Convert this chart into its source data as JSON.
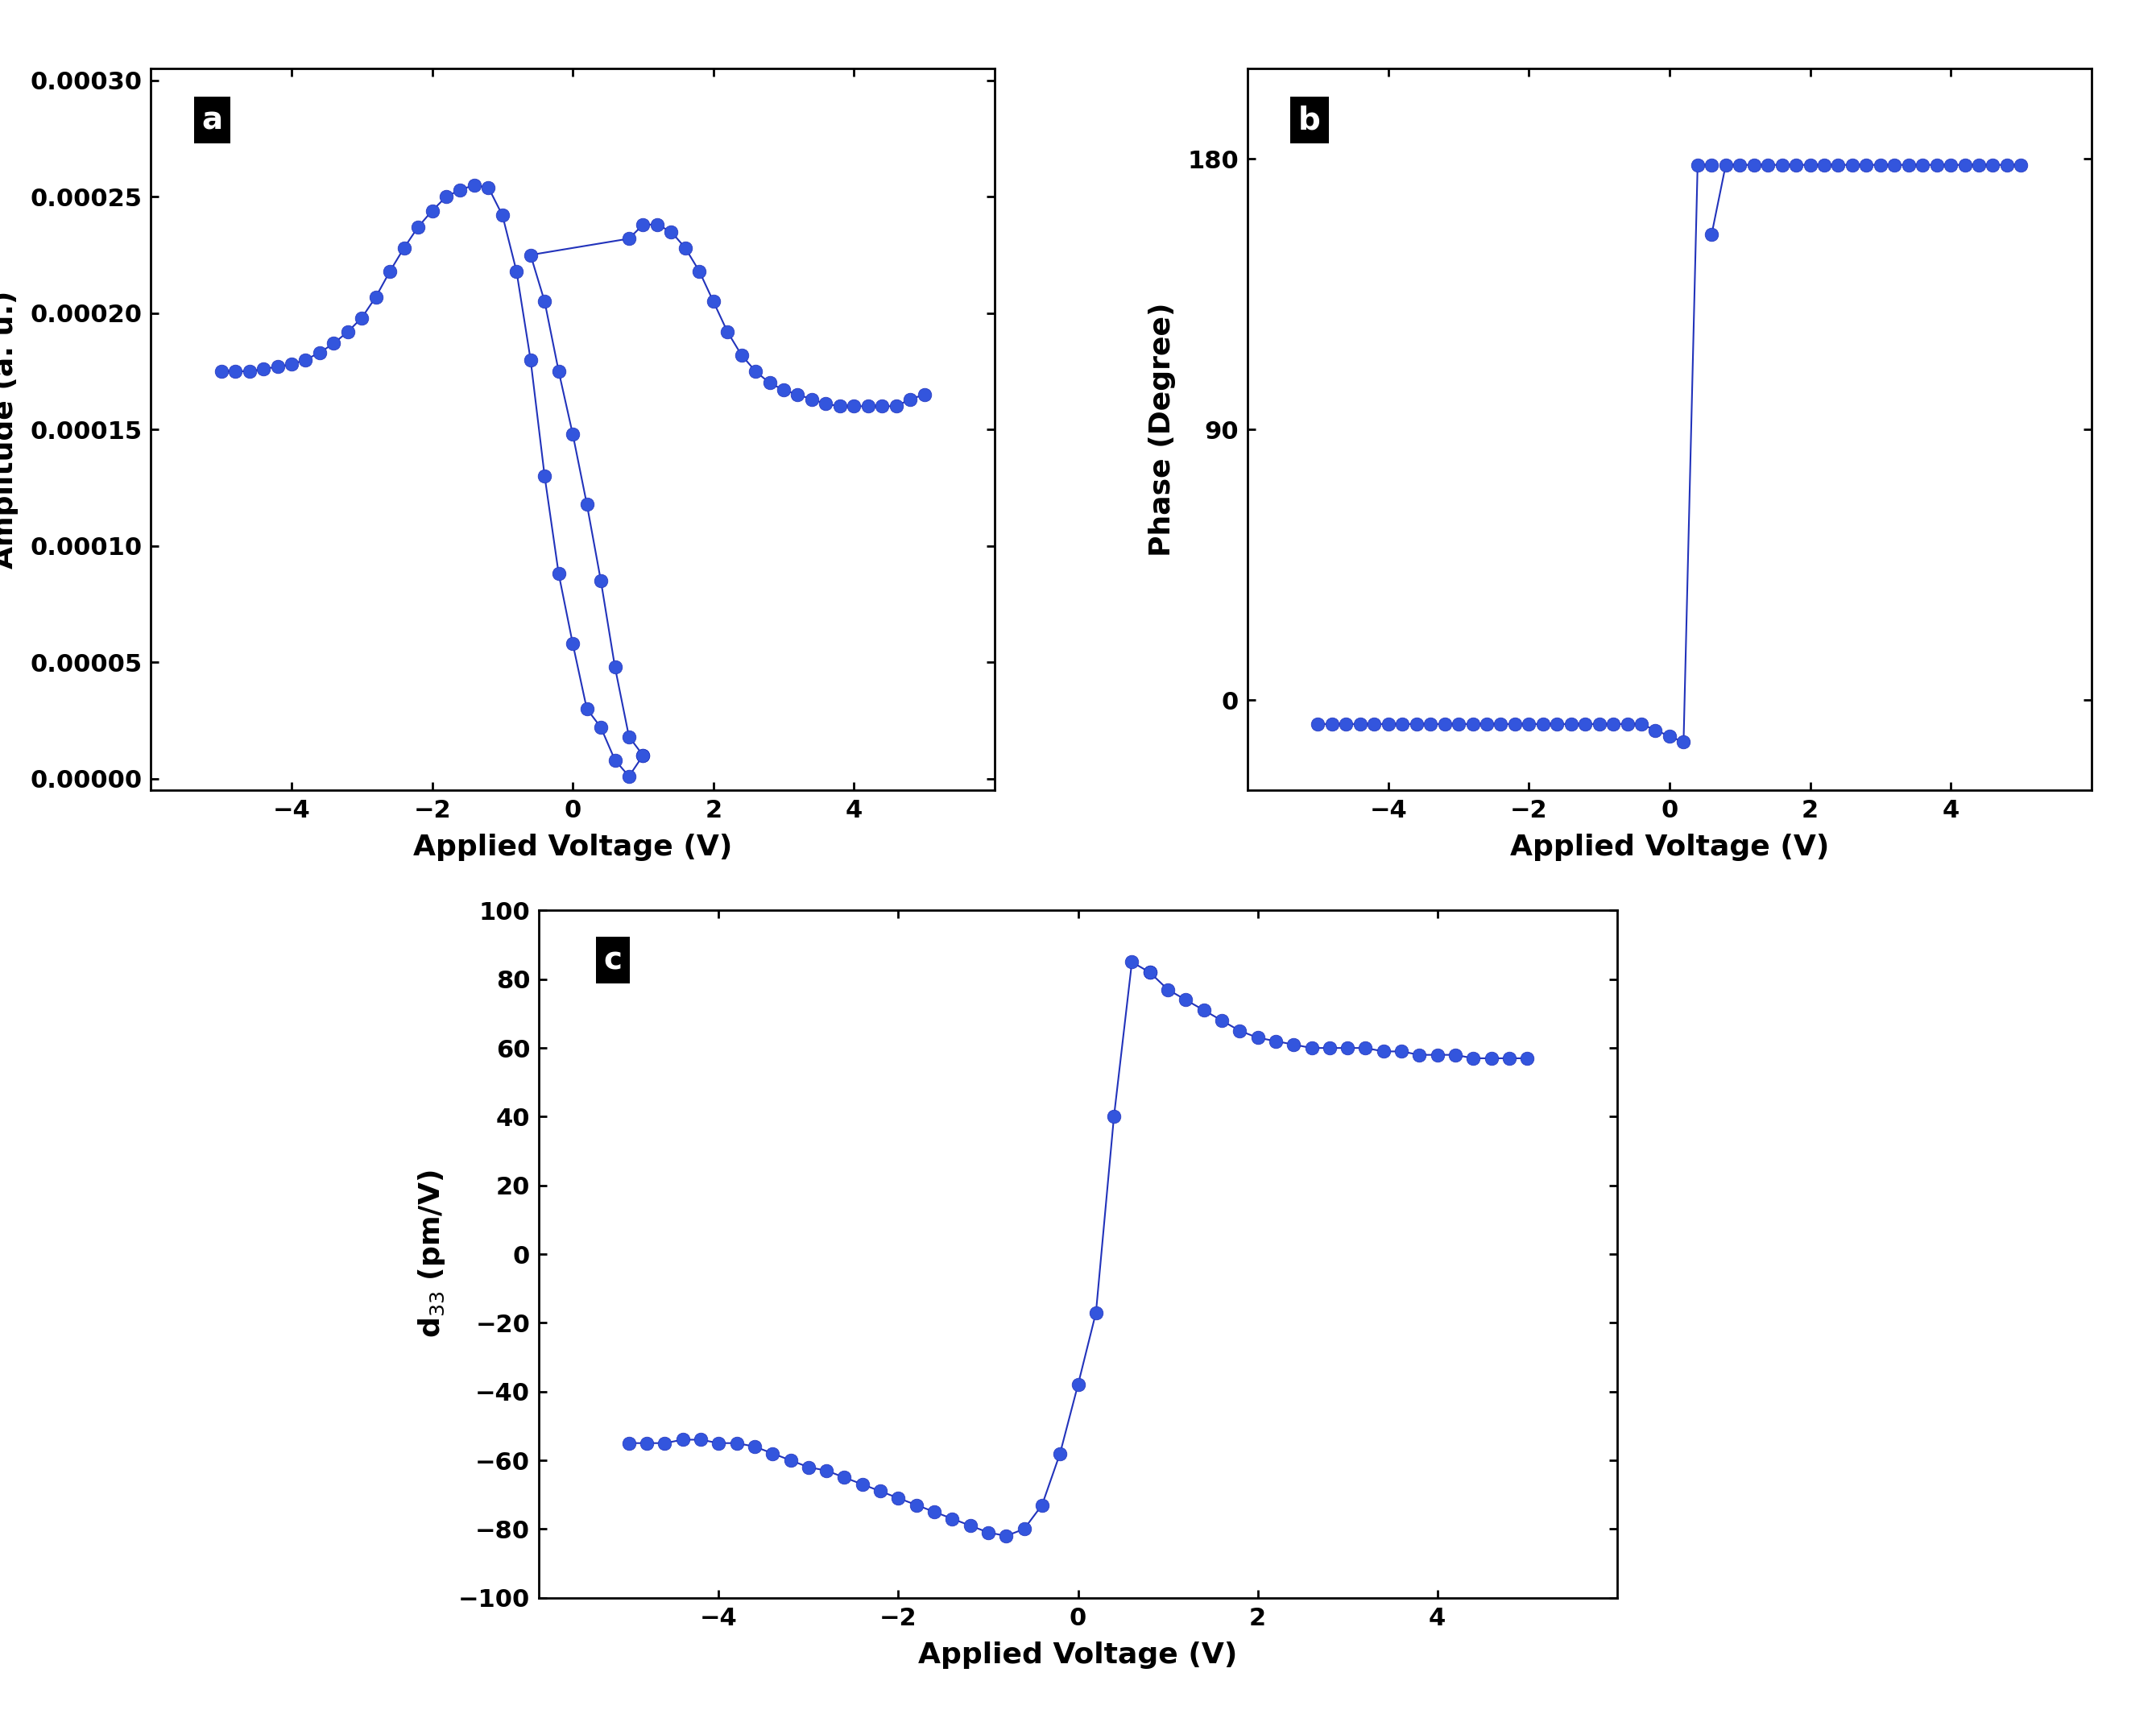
{
  "panel_a": {
    "label": "a",
    "xlabel": "Applied Voltage (V)",
    "ylabel": "Amplitude (a. u.)",
    "xlim": [
      -6,
      6
    ],
    "ylim": [
      -5e-06,
      0.000305
    ],
    "yticks": [
      0.0,
      5e-05,
      0.0001,
      0.00015,
      0.0002,
      0.00025,
      0.0003
    ],
    "xticks": [
      -4,
      -2,
      0,
      2,
      4
    ],
    "x_fwd": [
      -5.0,
      -4.8,
      -4.6,
      -4.4,
      -4.2,
      -4.0,
      -3.8,
      -3.6,
      -3.4,
      -3.2,
      -3.0,
      -2.8,
      -2.6,
      -2.4,
      -2.2,
      -2.0,
      -1.8,
      -1.6,
      -1.4,
      -1.2,
      -1.0,
      -0.8,
      -0.6,
      -0.4,
      -0.2,
      0.0,
      0.2,
      0.4,
      0.6,
      0.8,
      1.0
    ],
    "y_fwd": [
      0.000175,
      0.000175,
      0.000175,
      0.000176,
      0.000177,
      0.000178,
      0.00018,
      0.000183,
      0.000187,
      0.000192,
      0.000198,
      0.000207,
      0.000218,
      0.000228,
      0.000237,
      0.000244,
      0.00025,
      0.000253,
      0.000255,
      0.000254,
      0.000242,
      0.000218,
      0.00018,
      0.00013,
      8.8e-05,
      5.8e-05,
      3e-05,
      2.2e-05,
      8e-06,
      1e-06,
      1e-05
    ],
    "x_bwd": [
      1.0,
      0.8,
      0.6,
      0.4,
      0.2,
      0.0,
      -0.2,
      -0.4,
      -0.6,
      0.8,
      1.0,
      1.2,
      1.4,
      1.6,
      1.8,
      2.0,
      2.2,
      2.4,
      2.6,
      2.8,
      3.0,
      3.2,
      3.4,
      3.6,
      3.8,
      4.0,
      4.2,
      4.4,
      4.6,
      4.8,
      5.0
    ],
    "y_bwd": [
      1e-05,
      1.8e-05,
      4.8e-05,
      8.5e-05,
      0.000118,
      0.000148,
      0.000175,
      0.000205,
      0.000225,
      0.000232,
      0.000238,
      0.000238,
      0.000235,
      0.000228,
      0.000218,
      0.000205,
      0.000192,
      0.000182,
      0.000175,
      0.00017,
      0.000167,
      0.000165,
      0.000163,
      0.000161,
      0.00016,
      0.00016,
      0.00016,
      0.00016,
      0.00016,
      0.000163,
      0.000165
    ]
  },
  "panel_b": {
    "label": "b",
    "xlabel": "Applied Voltage (V)",
    "ylabel": "Phase (Degree)",
    "xlim": [
      -6,
      6
    ],
    "ylim": [
      -30,
      210
    ],
    "yticks": [
      0,
      90,
      180
    ],
    "xticks": [
      -4,
      -2,
      0,
      2,
      4
    ],
    "x_fwd": [
      -5.0,
      -4.8,
      -4.6,
      -4.4,
      -4.2,
      -4.0,
      -3.8,
      -3.6,
      -3.4,
      -3.2,
      -3.0,
      -2.8,
      -2.6,
      -2.4,
      -2.2,
      -2.0,
      -1.8,
      -1.6,
      -1.4,
      -1.2,
      -1.0,
      -0.8,
      -0.6,
      -0.4,
      -0.2,
      0.0,
      0.2,
      0.4,
      0.6
    ],
    "y_fwd": [
      -8,
      -8,
      -8,
      -8,
      -8,
      -8,
      -8,
      -8,
      -8,
      -8,
      -8,
      -8,
      -8,
      -8,
      -8,
      -8,
      -8,
      -8,
      -8,
      -8,
      -8,
      -8,
      -8,
      -8,
      -10,
      -12,
      -14,
      178,
      178
    ],
    "x_bwd": [
      0.6,
      0.8,
      1.0,
      1.2,
      1.4,
      1.6,
      1.8,
      2.0,
      2.2,
      2.4,
      2.6,
      2.8,
      3.0,
      3.2,
      3.4,
      3.6,
      3.8,
      4.0,
      4.2,
      4.4,
      4.6,
      4.8,
      5.0
    ],
    "y_bwd": [
      155,
      178,
      178,
      178,
      178,
      178,
      178,
      178,
      178,
      178,
      178,
      178,
      178,
      178,
      178,
      178,
      178,
      178,
      178,
      178,
      178,
      178,
      178
    ]
  },
  "panel_c": {
    "label": "c",
    "xlabel": "Applied Voltage (V)",
    "ylabel": "d$_{33}$ (pm/V)",
    "xlim": [
      -6,
      6
    ],
    "ylim": [
      -100,
      100
    ],
    "yticks": [
      -100,
      -80,
      -60,
      -40,
      -20,
      0,
      20,
      40,
      60,
      80,
      100
    ],
    "xticks": [
      -4,
      -2,
      0,
      2,
      4
    ],
    "x_fwd": [
      -5.0,
      -4.8,
      -4.6,
      -4.4,
      -4.2,
      -4.0,
      -3.8,
      -3.6,
      -3.4,
      -3.2,
      -3.0,
      -2.8,
      -2.6,
      -2.4,
      -2.2,
      -2.0,
      -1.8,
      -1.6,
      -1.4,
      -1.2,
      -1.0,
      -0.8,
      -0.6,
      -0.4,
      -0.2,
      0.0,
      0.2,
      0.4,
      0.6,
      0.8
    ],
    "y_fwd": [
      -55,
      -55,
      -55,
      -54,
      -54,
      -55,
      -55,
      -56,
      -58,
      -60,
      -62,
      -63,
      -65,
      -67,
      -69,
      -71,
      -73,
      -75,
      -77,
      -79,
      -81,
      -82,
      -80,
      -73,
      -58,
      -38,
      -17,
      40,
      85,
      82
    ],
    "x_bwd": [
      0.8,
      1.0,
      1.2,
      1.4,
      1.6,
      1.8,
      2.0,
      2.2,
      2.4,
      2.6,
      2.8,
      3.0,
      3.2,
      3.4,
      3.6,
      3.8,
      4.0,
      4.2,
      4.4,
      4.6,
      4.8,
      5.0
    ],
    "y_bwd": [
      82,
      77,
      74,
      71,
      68,
      65,
      63,
      62,
      61,
      60,
      60,
      60,
      60,
      59,
      59,
      58,
      58,
      58,
      57,
      57,
      57,
      57
    ]
  },
  "line_color": "#2233BB",
  "marker_facecolor": "#3355DD",
  "marker_edgecolor": "#2233BB",
  "marker_size": 12,
  "line_width": 1.5,
  "font_size_label": 26,
  "font_size_tick": 22,
  "font_size_panel": 28,
  "background_color": "#ffffff"
}
